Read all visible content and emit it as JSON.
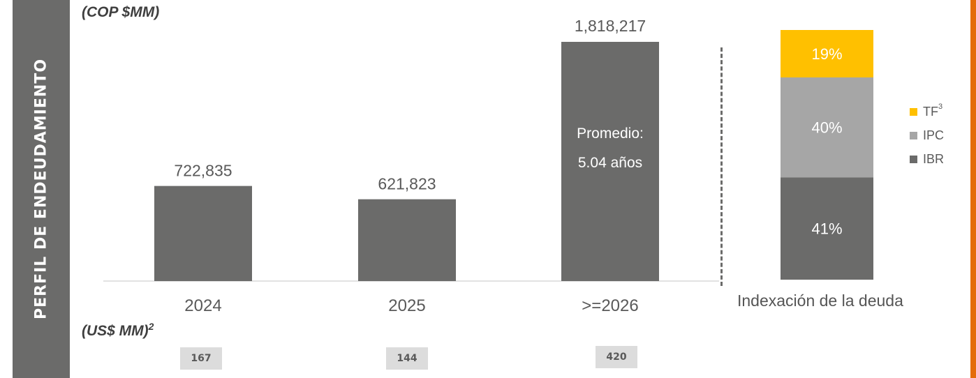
{
  "side_title": "PERFIL DE ENDEUDAMIENTO",
  "cop_unit": "(COP $MM)",
  "usd_unit": "(US$ MM)",
  "usd_unit_sup": "2",
  "bar_annotation": [
    "Promedio:",
    "5.04 años"
  ],
  "usd_values": [
    "167",
    "144",
    "420"
  ],
  "stack_title": "Indexación de la deuda",
  "legend": [
    {
      "label": "TF",
      "sup": "3"
    },
    {
      "label": "IPC",
      "sup": ""
    },
    {
      "label": "IBR",
      "sup": ""
    }
  ],
  "colors": {
    "bar": "#6b6b6a",
    "tf": "#ffc000",
    "ipc": "#a6a6a6",
    "ibr": "#6b6b6a",
    "accent_edge": "#e46c0a"
  },
  "chart_data": [
    {
      "type": "bar",
      "categories": [
        "2024",
        "2025",
        ">=2026"
      ],
      "values": [
        722835,
        621823,
        1818217
      ],
      "value_labels": [
        "722,835",
        "621,823",
        "1,818,217"
      ],
      "title": "",
      "ylabel": "(COP $MM)",
      "ylim": [
        0,
        1818217
      ],
      "grid": false
    },
    {
      "type": "bar",
      "stacked": true,
      "categories": [
        "Indexación de la deuda"
      ],
      "series": [
        {
          "name": "IBR",
          "values": [
            41
          ],
          "label": "41%"
        },
        {
          "name": "IPC",
          "values": [
            40
          ],
          "label": "40%"
        },
        {
          "name": "TF",
          "values": [
            19
          ],
          "label": "19%"
        }
      ],
      "ylim": [
        0,
        100
      ],
      "legend_position": "right"
    }
  ]
}
